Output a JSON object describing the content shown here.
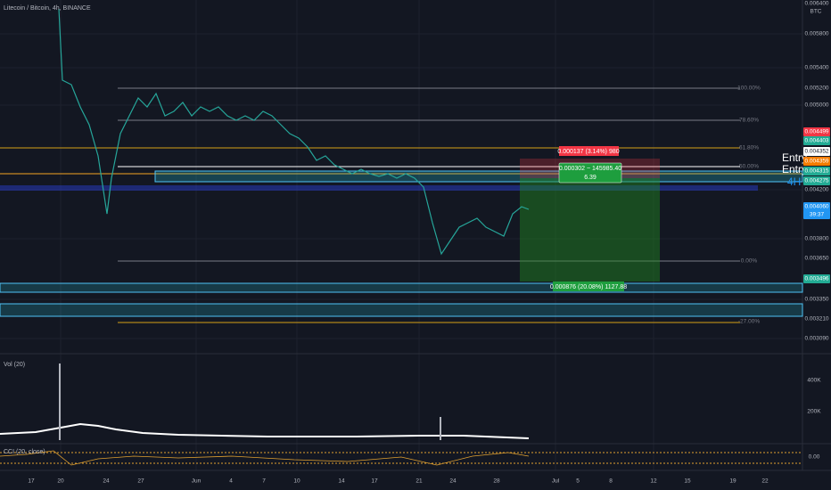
{
  "header": {
    "title": "Litecoin / Bitcoin, 4h, BINANCE"
  },
  "price_axis": {
    "unit": "BTC",
    "labels": [
      {
        "text": "0.006400",
        "color": null
      },
      {
        "text": "0.005800",
        "color": null
      },
      {
        "text": "0.005400",
        "color": null
      },
      {
        "text": "0.005200",
        "color": null
      },
      {
        "text": "0.005000",
        "color": null
      },
      {
        "text": "0.004499",
        "color": "#f23645"
      },
      {
        "text": "0.004403",
        "color": "#22ab94"
      },
      {
        "text": "0.004352",
        "color": "#ffffff"
      },
      {
        "text": "0.004359",
        "color": "#f57c00"
      },
      {
        "text": "0.004315",
        "color": "#22ab94"
      },
      {
        "text": "0.004275",
        "color": "#22ab94"
      },
      {
        "text": "0.004200",
        "color": null
      },
      {
        "text": "0.004060",
        "color": "#2196f3"
      },
      {
        "text": "39:37",
        "color": "#2196f3"
      },
      {
        "text": "0.003800",
        "color": null
      },
      {
        "text": "0.003650",
        "color": null
      },
      {
        "text": "0.003496",
        "color": "#22ab94"
      },
      {
        "text": "0.003350",
        "color": null
      },
      {
        "text": "0.003210",
        "color": null
      },
      {
        "text": "0.003090",
        "color": null
      }
    ]
  },
  "time_axis": [
    "17",
    "20",
    "24",
    "27",
    "Jun",
    "4",
    "7",
    "10",
    "14",
    "17",
    "21",
    "24",
    "28",
    "Jul",
    "5",
    "8",
    "12",
    "15",
    "19",
    "22"
  ],
  "fib_levels": [
    "100.00%",
    "78.60%",
    "61.80%",
    "50.00%",
    "0.00%",
    "-27.00%"
  ],
  "position": {
    "stop": "0.000137 (3.14%) 980",
    "open": "0.000302 ~ 145985.40",
    "ratio": "6.39",
    "target": "0.000876 (20.08%) 1127.88"
  },
  "labels": [
    "Entry",
    "Entry",
    "4H"
  ],
  "indicators": {
    "volume": {
      "title": "Vol (20)",
      "ticks": [
        "400K",
        "200K"
      ]
    },
    "cci": {
      "title": "CCI (20, close)",
      "ticks": [
        "0.00"
      ]
    }
  }
}
